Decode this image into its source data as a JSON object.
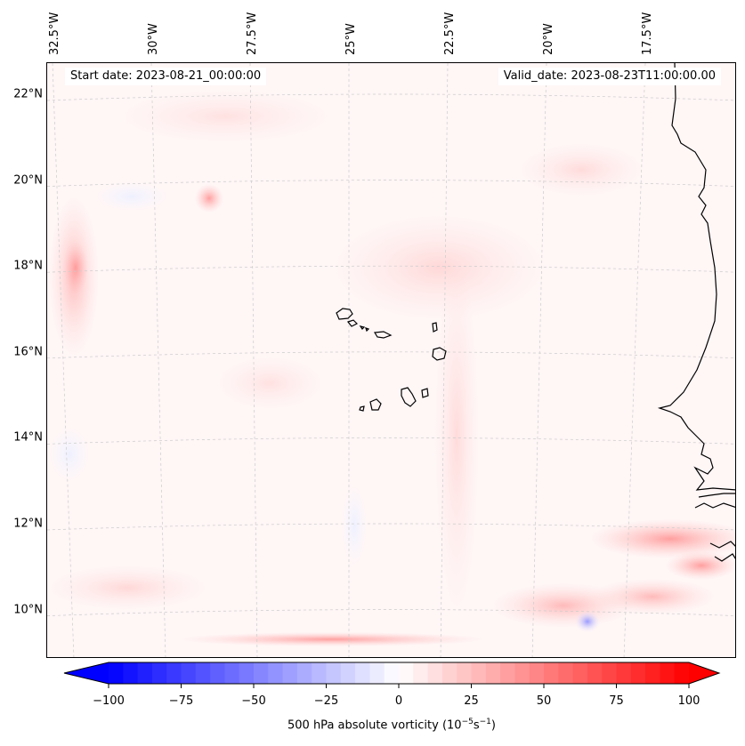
{
  "header": {
    "start_date": "Start date: 2023-08-21_00:00:00",
    "valid_date": "Valid_date: 2023-08-23T11:00:00.00"
  },
  "map": {
    "lat_ticks": [
      {
        "value": 22,
        "label": "22°N"
      },
      {
        "value": 20,
        "label": "20°N"
      },
      {
        "value": 18,
        "label": "18°N"
      },
      {
        "value": 16,
        "label": "16°N"
      },
      {
        "value": 14,
        "label": "14°N"
      },
      {
        "value": 12,
        "label": "12°N"
      },
      {
        "value": 10,
        "label": "10°N"
      }
    ],
    "lon_ticks": [
      {
        "value": -32.5,
        "label": "32.5°W"
      },
      {
        "value": -30,
        "label": "30°W"
      },
      {
        "value": -27.5,
        "label": "27.5°W"
      },
      {
        "value": -25,
        "label": "25°W"
      },
      {
        "value": -22.5,
        "label": "22.5°W"
      },
      {
        "value": -20,
        "label": "20°W"
      },
      {
        "value": -17.5,
        "label": "17.5°W"
      }
    ],
    "background_color": "#fff6f6",
    "coast_color": "#000000",
    "grid_color": "#cccccc"
  },
  "colorbar": {
    "min": -100,
    "max": 100,
    "low_color": "#0000ff",
    "mid_color": "#ffffff",
    "high_color": "#ff0000",
    "ticks": [
      {
        "value": -100,
        "label": "−100"
      },
      {
        "value": -75,
        "label": "−75"
      },
      {
        "value": -50,
        "label": "−50"
      },
      {
        "value": -25,
        "label": "−25"
      },
      {
        "value": 0,
        "label": "0"
      },
      {
        "value": 25,
        "label": "25"
      },
      {
        "value": 50,
        "label": "50"
      },
      {
        "value": 75,
        "label": "75"
      },
      {
        "value": 100,
        "label": "100"
      }
    ],
    "label": "500 hPa absolute vorticity (10",
    "label_exp1": "−5",
    "label_mid": "s",
    "label_exp2": "−1",
    "label_end": ")"
  }
}
